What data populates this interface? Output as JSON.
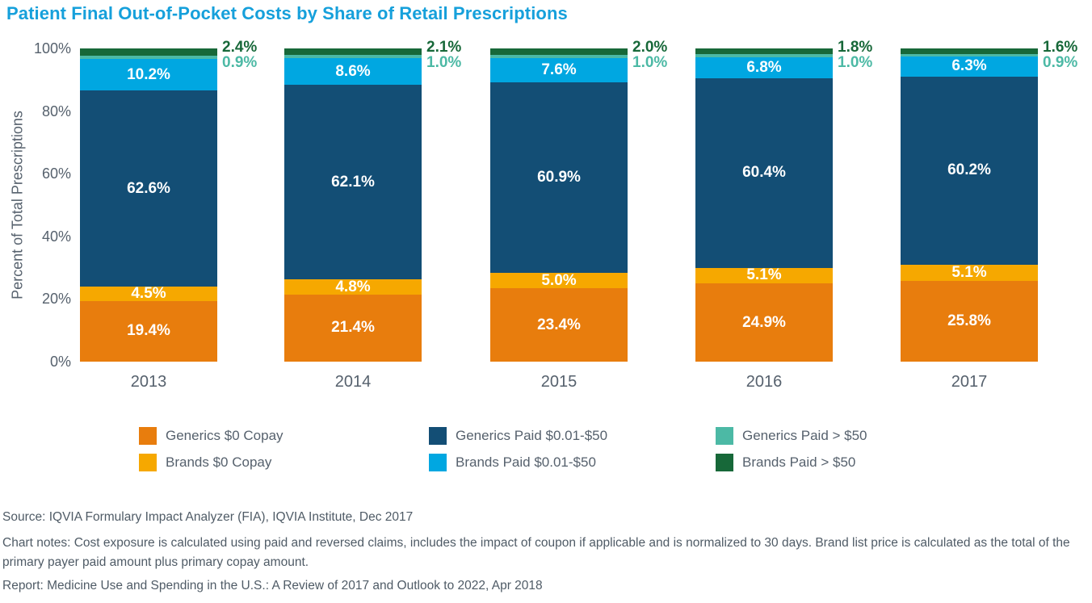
{
  "title": "Patient Final Out-of-Pocket Costs by Share of Retail Prescriptions",
  "colors": {
    "title": "#16a0db",
    "axis_text": "#56616d",
    "footer_text": "#4f5b66",
    "segment_label": "#ffffff"
  },
  "chart_data": {
    "type": "bar",
    "stacked": true,
    "title": "Patient Final Out-of-Pocket Costs by Share of Retail Prescriptions",
    "xlabel": "",
    "ylabel": "Percent of Total Prescriptions",
    "ylim": [
      0,
      100
    ],
    "grid": false,
    "legend_position": "bottom",
    "categories": [
      "2013",
      "2014",
      "2015",
      "2016",
      "2017"
    ],
    "yticks": [
      {
        "value": 0,
        "label": "0%"
      },
      {
        "value": 20,
        "label": "20%"
      },
      {
        "value": 40,
        "label": "40%"
      },
      {
        "value": 60,
        "label": "60%"
      },
      {
        "value": 80,
        "label": "80%"
      },
      {
        "value": 100,
        "label": "100%"
      }
    ],
    "series": [
      {
        "name": "Generics $0 Copay",
        "color": "#e87d0d",
        "values": [
          19.4,
          21.4,
          23.4,
          24.9,
          25.8
        ],
        "label_style": "inside-white"
      },
      {
        "name": "Brands $0 Copay",
        "color": "#f6a800",
        "values": [
          4.5,
          4.8,
          5.0,
          5.1,
          5.1
        ],
        "label_style": "inside-white"
      },
      {
        "name": "Generics Paid $0.01-$50",
        "color": "#134e75",
        "values": [
          62.6,
          62.1,
          60.9,
          60.4,
          60.2
        ],
        "label_style": "inside-white"
      },
      {
        "name": "Brands Paid $0.01-$50",
        "color": "#00a7e1",
        "values": [
          10.2,
          8.6,
          7.6,
          6.8,
          6.3
        ],
        "label_style": "inside-white"
      },
      {
        "name": "Generics Paid > $50",
        "color": "#4cb9a5",
        "values": [
          0.9,
          1.0,
          1.0,
          1.0,
          0.9
        ],
        "label_style": "outside-right"
      },
      {
        "name": "Brands Paid > $50",
        "color": "#176839",
        "values": [
          2.4,
          2.1,
          2.0,
          1.8,
          1.6
        ],
        "label_style": "outside-right"
      }
    ]
  },
  "footer": {
    "source": "Source: IQVIA Formulary Impact Analyzer (FIA), IQVIA Institute, Dec 2017",
    "chart_notes": "Chart notes: Cost exposure is calculated using paid and reversed claims, includes the impact of coupon if applicable and is normalized to 30 days. Brand list price is calculated as the total of the primary payer paid amount plus primary copay amount.",
    "report": "Report: Medicine Use and Spending in the U.S.: A Review of 2017 and Outlook to 2022, Apr 2018"
  }
}
